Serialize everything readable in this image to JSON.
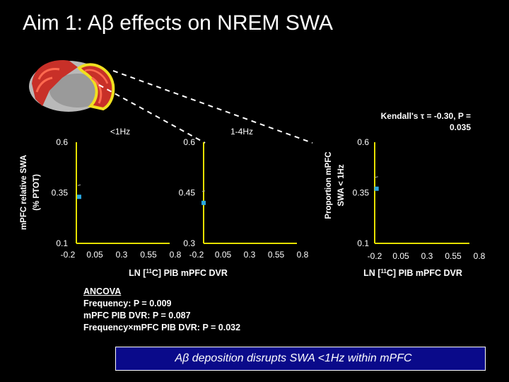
{
  "slide": {
    "title": "Aim 1: Aβ effects on NREM SWA",
    "banner": "Aβ deposition disrupts SWA <1Hz within mPFC"
  },
  "ancova": {
    "heading": "ANCOVA",
    "lines": [
      "Frequency: P = 0.009",
      "mPFC PIB DVR: P = 0.087",
      "Frequency×mPFC PIB DVR: P = 0.032"
    ]
  },
  "colors": {
    "axis": "#e6e000",
    "point": "#2aa8e0",
    "background": "#000000",
    "banner": "#0a0a8a",
    "highlight_yellow": "#f0e020",
    "cortex_red": "#c83028"
  },
  "brain_graphic": {
    "icon": "brain-medial-view-icon"
  },
  "chart_data": [
    {
      "type": "scatter",
      "title": "<1Hz",
      "ylabel": "mPFC relative SWA (% PTOT)",
      "xlabel": "",
      "xlim": [
        -0.2,
        0.8
      ],
      "ylim": [
        0.1,
        0.6
      ],
      "xticks": [
        "-0.2",
        "0.05",
        "0.3",
        "0.55",
        "0.8"
      ],
      "yticks": [
        "0.1",
        "0.35",
        "0.6"
      ],
      "points": [
        {
          "x": -0.17,
          "y": 0.33
        }
      ],
      "grid": false
    },
    {
      "type": "scatter",
      "title": "1-4Hz",
      "ylabel": "",
      "xlabel": "LN [11C] PIB mPFC DVR",
      "xlim": [
        -0.2,
        0.8
      ],
      "ylim": [
        0.3,
        0.6
      ],
      "xticks": [
        "-0.2",
        "0.05",
        "0.3",
        "0.55",
        "0.8"
      ],
      "yticks": [
        "0.3",
        "0.45",
        "0.6"
      ],
      "points": [
        {
          "x": -0.2,
          "y": 0.42
        }
      ],
      "grid": false
    },
    {
      "type": "scatter",
      "title": "",
      "annotation": "Kendall's τ = -0.30, P = 0.035",
      "ylabel": "Proportion mPFC SWA < 1Hz",
      "xlabel": "LN [11C] PIB mPFC DVR",
      "xlim": [
        -0.2,
        0.8
      ],
      "ylim": [
        0.1,
        0.6
      ],
      "xticks": [
        "-0.2",
        "0.05",
        "0.3",
        "0.55",
        "0.8"
      ],
      "yticks": [
        "0.1",
        "0.35",
        "0.6"
      ],
      "points": [
        {
          "x": -0.18,
          "y": 0.37
        }
      ],
      "grid": false
    }
  ]
}
